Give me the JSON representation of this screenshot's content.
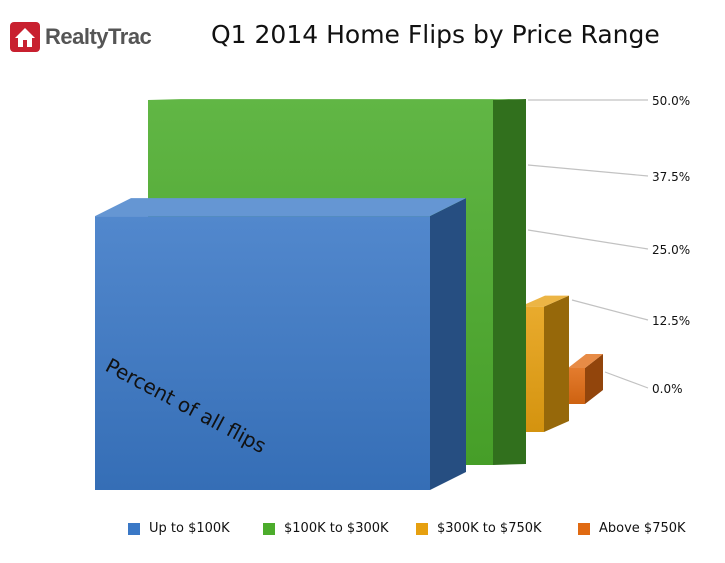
{
  "logo": {
    "text": "RealtyTrac",
    "icon": "house-icon",
    "color": "#c8202f"
  },
  "chart_data": {
    "type": "bar",
    "title": "Q1 2014 Home Flips by Price Range",
    "ylabel": "Percent of all flips",
    "yticks": [
      "0.0%",
      "12.5%",
      "25.0%",
      "37.5%",
      "50.0%"
    ],
    "ylim": [
      0,
      50
    ],
    "categories": [
      "Up to $100K",
      "$100K to $300K",
      "$300K to $750K",
      "Above $750K"
    ],
    "values": [
      33,
      50,
      11,
      3
    ],
    "colors": [
      "#3a78c6",
      "#4cac2c",
      "#e6a010",
      "#e06a12"
    ],
    "legend_position": "bottom"
  }
}
